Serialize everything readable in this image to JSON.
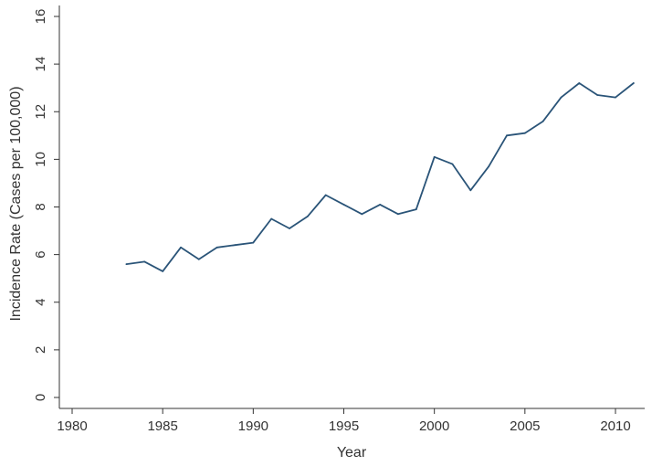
{
  "chart_data": {
    "type": "line",
    "title": "",
    "xlabel": "Year",
    "ylabel": "Incidence Rate (Cases per 100,000)",
    "xlim": [
      1979,
      2012
    ],
    "ylim": [
      0,
      16
    ],
    "x_ticks": [
      1980,
      1985,
      1990,
      1995,
      2000,
      2005,
      2010
    ],
    "y_ticks": [
      0,
      2,
      4,
      6,
      8,
      10,
      12,
      14,
      16
    ],
    "grid": false,
    "legend": "none",
    "series": [
      {
        "color": "#2a5478",
        "x": [
          1983,
          1984,
          1985,
          1986,
          1987,
          1988,
          1989,
          1990,
          1991,
          1992,
          1993,
          1994,
          1995,
          1996,
          1997,
          1998,
          1999,
          2000,
          2001,
          2002,
          2003,
          2004,
          2005,
          2006,
          2007,
          2008,
          2009,
          2010,
          2011
        ],
        "y": [
          5.6,
          5.7,
          5.3,
          6.3,
          5.8,
          6.3,
          6.4,
          6.5,
          7.5,
          7.1,
          7.6,
          8.5,
          8.1,
          7.7,
          8.1,
          7.7,
          7.9,
          10.1,
          9.8,
          8.7,
          9.7,
          11.0,
          11.1,
          11.6,
          12.6,
          13.2,
          12.7,
          12.6,
          13.2
        ]
      }
    ]
  }
}
